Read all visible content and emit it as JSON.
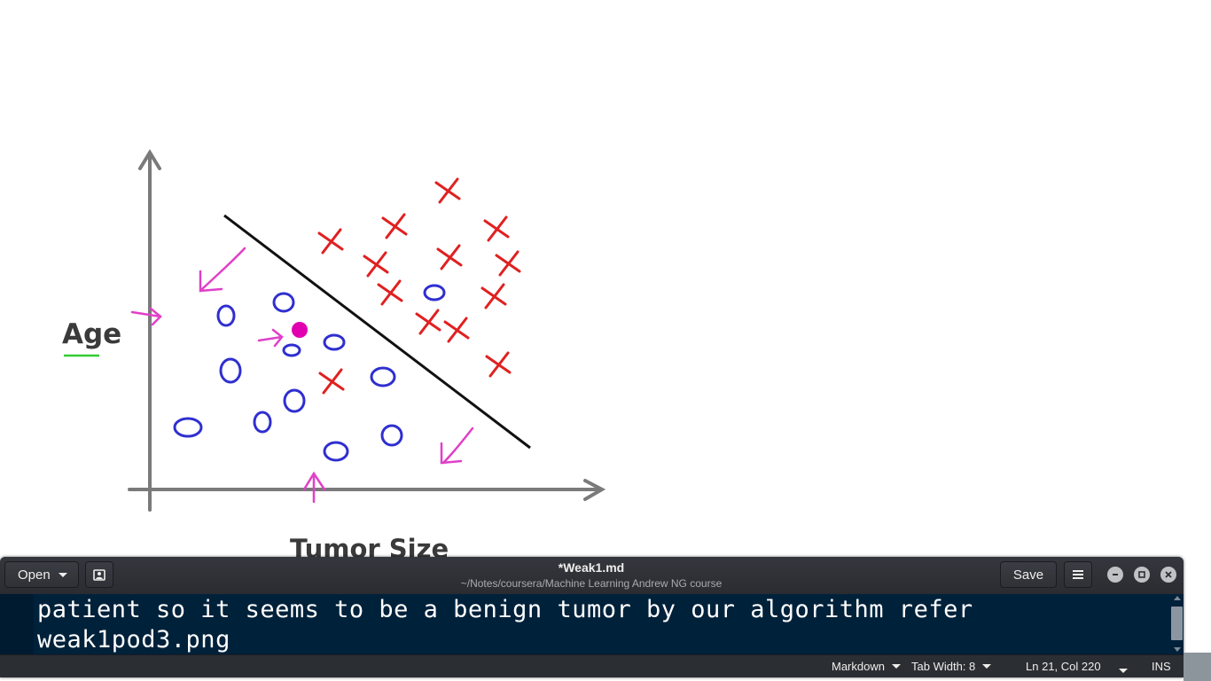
{
  "viewer": {
    "y_axis_label": "Age",
    "x_axis_label": "Tumor Size"
  },
  "chart_data": {
    "type": "scatter",
    "title": "",
    "xlabel": "Tumor Size",
    "ylabel": "Age",
    "grid": false,
    "series": [
      {
        "marker": "o",
        "color": "#2f2fd0"
      },
      {
        "marker": "x",
        "color": "#e02020"
      }
    ]
  },
  "editor": {
    "open_label": "Open",
    "title": "*Weak1.md",
    "path": "~/Notes/coursera/Machine Learning Andrew NG course",
    "save_label": "Save",
    "icons": {
      "recent": "recent-docs-icon",
      "menu": "hamburger-menu-icon",
      "minimize": "minimize-icon",
      "maximize": "maximize-icon",
      "close": "close-icon"
    },
    "lines": [
      "patient so it seems to be a benign tumor by our algorithm refer",
      "weak1pod3.png"
    ]
  },
  "statusbar": {
    "language": "Markdown",
    "tab_width": "Tab Width: 8",
    "position": "Ln 21, Col 220",
    "mode": "INS"
  },
  "colors": {
    "editor_bg": "#00213a",
    "headerbar": "#2b2e33",
    "benign": "#2f2fd0",
    "malignant": "#e02020",
    "annotation": "#e040c8"
  }
}
